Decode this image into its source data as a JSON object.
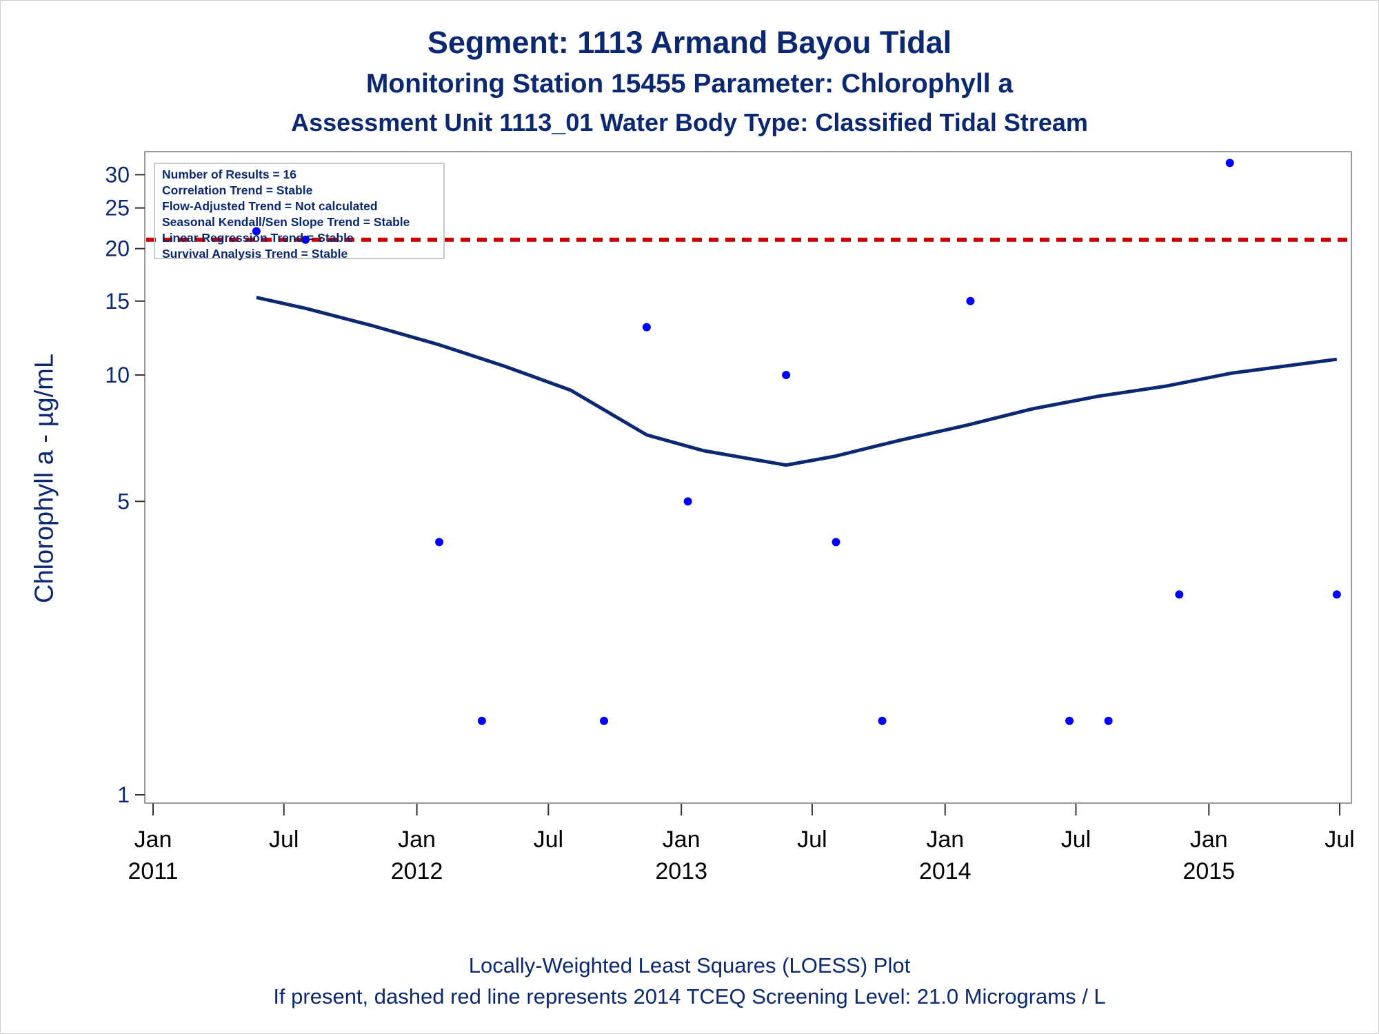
{
  "chart_data": {
    "type": "scatter",
    "title": "Segment: 1113  Armand Bayou Tidal",
    "subtitle": "Monitoring Station 15455 Parameter: Chlorophyll a",
    "subtitle2": "Assessment Unit 1113_01   Water Body Type: Classified Tidal Stream",
    "ylabel": "Chlorophyll a -  µg/mL",
    "xlabel": "",
    "y_scale": "log",
    "ylim": [
      0.98,
      33
    ],
    "xlim": [
      "2011-01-01",
      "2015-07-01"
    ],
    "y_ticks": [
      1,
      5,
      10,
      15,
      20,
      25,
      30
    ],
    "x_ticks": [
      {
        "date": "2011-01-01",
        "label1": "Jan",
        "label2": "2011"
      },
      {
        "date": "2011-07-01",
        "label1": "Jul",
        "label2": ""
      },
      {
        "date": "2012-01-01",
        "label1": "Jan",
        "label2": "2012"
      },
      {
        "date": "2012-07-01",
        "label1": "Jul",
        "label2": ""
      },
      {
        "date": "2013-01-01",
        "label1": "Jan",
        "label2": "2013"
      },
      {
        "date": "2013-07-01",
        "label1": "Jul",
        "label2": ""
      },
      {
        "date": "2014-01-01",
        "label1": "Jan",
        "label2": "2014"
      },
      {
        "date": "2014-07-01",
        "label1": "Jul",
        "label2": ""
      },
      {
        "date": "2015-01-01",
        "label1": "Jan",
        "label2": "2015"
      },
      {
        "date": "2015-07-01",
        "label1": "Jul",
        "label2": ""
      }
    ],
    "series": [
      {
        "type": "scatter",
        "color": "#0000ff",
        "points": [
          {
            "x": "2011-05-24",
            "y": 22
          },
          {
            "x": "2011-07-31",
            "y": 21
          },
          {
            "x": "2012-02-01",
            "y": 4
          },
          {
            "x": "2012-03-31",
            "y": 1.5
          },
          {
            "x": "2012-09-16",
            "y": 1.5
          },
          {
            "x": "2012-11-14",
            "y": 13
          },
          {
            "x": "2013-01-10",
            "y": 5
          },
          {
            "x": "2013-05-26",
            "y": 10
          },
          {
            "x": "2013-08-03",
            "y": 4
          },
          {
            "x": "2013-10-06",
            "y": 1.5
          },
          {
            "x": "2014-02-05",
            "y": 15
          },
          {
            "x": "2014-06-22",
            "y": 1.5
          },
          {
            "x": "2014-08-15",
            "y": 1.5
          },
          {
            "x": "2014-11-21",
            "y": 3
          },
          {
            "x": "2015-01-30",
            "y": 32
          },
          {
            "x": "2015-06-27",
            "y": 3
          }
        ]
      },
      {
        "type": "line",
        "color": "#0b2870",
        "points": [
          {
            "x": "2011-05-24",
            "y": 15.3
          },
          {
            "x": "2011-08-01",
            "y": 14.4
          },
          {
            "x": "2011-11-01",
            "y": 13.1
          },
          {
            "x": "2012-02-01",
            "y": 11.8
          },
          {
            "x": "2012-05-01",
            "y": 10.5
          },
          {
            "x": "2012-08-01",
            "y": 9.2
          },
          {
            "x": "2012-11-14",
            "y": 7.2
          },
          {
            "x": "2013-02-01",
            "y": 6.6
          },
          {
            "x": "2013-05-26",
            "y": 6.1
          },
          {
            "x": "2013-08-01",
            "y": 6.4
          },
          {
            "x": "2013-11-01",
            "y": 7.0
          },
          {
            "x": "2014-02-01",
            "y": 7.6
          },
          {
            "x": "2014-05-01",
            "y": 8.3
          },
          {
            "x": "2014-08-01",
            "y": 8.9
          },
          {
            "x": "2014-11-01",
            "y": 9.4
          },
          {
            "x": "2015-02-01",
            "y": 10.1
          },
          {
            "x": "2015-06-27",
            "y": 10.9
          }
        ]
      }
    ],
    "reference_line": {
      "y": 21.0,
      "color": "#cc0000",
      "style": "dashed"
    },
    "legend_placement": "top-left",
    "grid": false
  },
  "legend": {
    "lines": [
      "Number of Results = 16",
      "Correlation Trend = Stable",
      "Flow-Adjusted Trend = Not calculated",
      "Seasonal Kendall/Sen Slope Trend = Stable",
      "Linear Regression Trend = Stable",
      "Survival Analysis Trend = Stable"
    ]
  },
  "footnotes": {
    "line1": "Locally-Weighted Least Squares (LOESS) Plot",
    "line2": "If present, dashed red line represents 2014 TCEQ Screening Level: 21.0 Micrograms / L"
  }
}
